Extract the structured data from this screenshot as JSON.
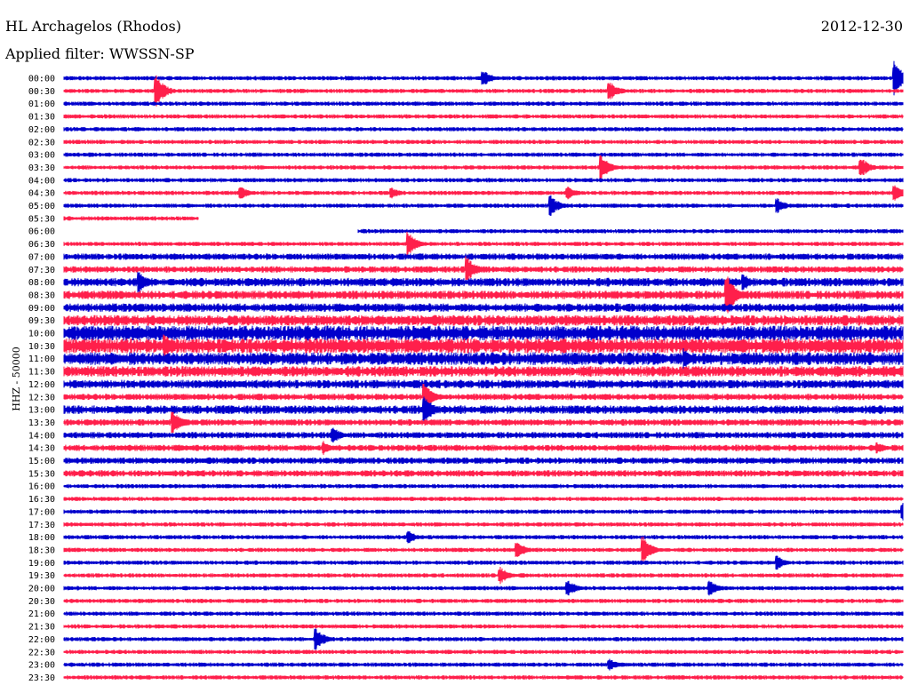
{
  "header": {
    "station": "HL Archagelos (Rhodos)",
    "date": "2012-12-30",
    "filter": "Applied filter: WWSSN-SP"
  },
  "chart_data": {
    "type": "line",
    "title": "HL Archagelos (Rhodos)",
    "ylabel": "HHZ - 50000",
    "colors": [
      "#0000cc",
      "#ff1f4b"
    ],
    "times": [
      "00:00",
      "00:30",
      "01:00",
      "01:30",
      "02:00",
      "02:30",
      "03:00",
      "03:30",
      "04:00",
      "04:30",
      "05:00",
      "05:30",
      "06:00",
      "06:30",
      "07:00",
      "07:30",
      "08:00",
      "08:30",
      "09:00",
      "09:30",
      "10:00",
      "10:30",
      "11:00",
      "11:30",
      "12:00",
      "12:30",
      "13:00",
      "13:30",
      "14:00",
      "14:30",
      "15:00",
      "15:30",
      "16:00",
      "16:30",
      "17:00",
      "17:30",
      "18:00",
      "18:30",
      "19:00",
      "19:30",
      "20:00",
      "20:30",
      "21:00",
      "21:30",
      "22:00",
      "22:30",
      "23:00",
      "23:30"
    ],
    "noise_level": [
      2,
      2,
      2,
      2,
      2,
      2,
      2,
      2,
      2,
      2,
      2,
      2,
      2,
      2,
      3,
      3,
      4,
      4,
      4,
      5,
      7,
      7,
      6,
      5,
      4,
      3,
      4,
      3,
      3,
      3,
      3,
      3,
      2,
      2,
      2,
      2,
      2,
      2,
      2,
      2,
      2,
      2,
      2,
      2,
      2,
      2,
      2,
      2
    ],
    "events": [
      {
        "time": "00:00",
        "pos": 0.5,
        "amp": 10
      },
      {
        "time": "00:00",
        "pos": 0.99,
        "amp": 20
      },
      {
        "time": "00:30",
        "pos": 0.11,
        "amp": 18
      },
      {
        "time": "00:30",
        "pos": 0.65,
        "amp": 12
      },
      {
        "time": "03:30",
        "pos": 0.64,
        "amp": 15
      },
      {
        "time": "03:30",
        "pos": 0.95,
        "amp": 12
      },
      {
        "time": "04:30",
        "pos": 0.21,
        "amp": 8
      },
      {
        "time": "04:30",
        "pos": 0.39,
        "amp": 7
      },
      {
        "time": "04:30",
        "pos": 0.6,
        "amp": 8
      },
      {
        "time": "04:30",
        "pos": 0.99,
        "amp": 10
      },
      {
        "time": "05:00",
        "pos": 0.58,
        "amp": 12
      },
      {
        "time": "05:00",
        "pos": 0.85,
        "amp": 9
      },
      {
        "time": "06:30",
        "pos": 0.41,
        "amp": 14
      },
      {
        "time": "07:30",
        "pos": 0.48,
        "amp": 16
      },
      {
        "time": "08:30",
        "pos": 0.79,
        "amp": 24
      },
      {
        "time": "08:00",
        "pos": 0.09,
        "amp": 12
      },
      {
        "time": "08:00",
        "pos": 0.81,
        "amp": 10
      },
      {
        "time": "10:30",
        "pos": 0.12,
        "amp": 14
      },
      {
        "time": "11:00",
        "pos": 0.74,
        "amp": 12
      },
      {
        "time": "12:30",
        "pos": 0.43,
        "amp": 15
      },
      {
        "time": "13:00",
        "pos": 0.43,
        "amp": 16
      },
      {
        "time": "13:30",
        "pos": 0.13,
        "amp": 14
      },
      {
        "time": "14:00",
        "pos": 0.32,
        "amp": 10
      },
      {
        "time": "14:30",
        "pos": 0.31,
        "amp": 8
      },
      {
        "time": "14:30",
        "pos": 0.97,
        "amp": 7
      },
      {
        "time": "17:00",
        "pos": 1.0,
        "amp": 10
      },
      {
        "time": "18:00",
        "pos": 0.41,
        "amp": 8
      },
      {
        "time": "18:30",
        "pos": 0.69,
        "amp": 16
      },
      {
        "time": "18:30",
        "pos": 0.54,
        "amp": 10
      },
      {
        "time": "19:00",
        "pos": 0.85,
        "amp": 8
      },
      {
        "time": "19:30",
        "pos": 0.52,
        "amp": 10
      },
      {
        "time": "20:00",
        "pos": 0.6,
        "amp": 10
      },
      {
        "time": "20:00",
        "pos": 0.77,
        "amp": 9
      },
      {
        "time": "22:00",
        "pos": 0.3,
        "amp": 14
      },
      {
        "time": "23:00",
        "pos": 0.65,
        "amp": 7
      }
    ],
    "gaps": [
      {
        "time": "05:30",
        "start": 0.16,
        "end": 1.0
      },
      {
        "time": "06:00",
        "start": 0.0,
        "end": 0.35
      }
    ]
  }
}
